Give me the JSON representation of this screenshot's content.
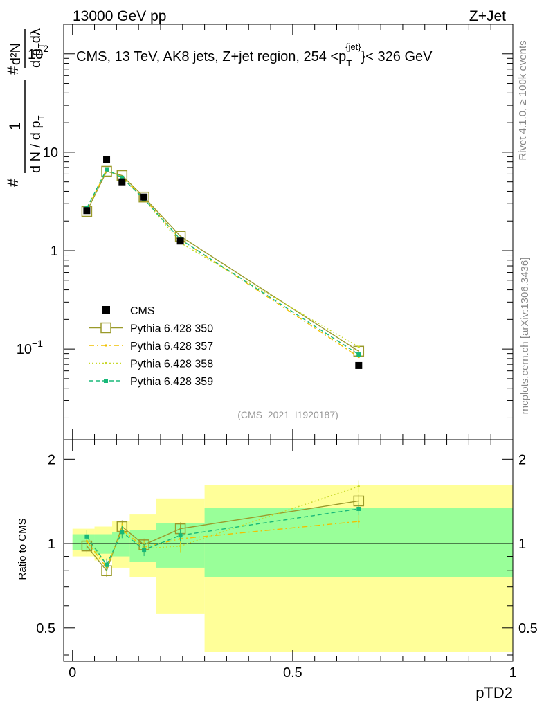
{
  "header": {
    "left": "13000 GeV pp",
    "right": "Z+Jet"
  },
  "side_labels": {
    "rivet": "Rivet 4.1.0, ≥ 100k events",
    "mcplots": "mcplots.cern.ch [arXiv:1306.3436]"
  },
  "chart_data": [
    {
      "panel": "main",
      "type": "line",
      "title_parts": {
        "pre": "CMS, 13 TeV, AK8 jets, Z+jet region, 254 <p",
        "sub": "T",
        "sup": "{jet}",
        "post": "}< 326 GeV"
      },
      "ylabel_parts": {
        "hash": "#",
        "one": "1",
        "dn": "d N / d p",
        "dn_sub": "T",
        "hash2": "#",
        "d2n": "d²N",
        "den": "d p",
        "den_sub": "T",
        "den_post": "dλ"
      },
      "yscale": "log",
      "ylim": [
        0.012,
        200
      ],
      "xlim": [
        -0.02,
        1.0
      ],
      "ytick_labels": [
        {
          "value": 100,
          "base": "10",
          "exp": "2"
        },
        {
          "value": 10,
          "base": "10",
          "exp": ""
        },
        {
          "value": 1,
          "base": "1",
          "exp": ""
        },
        {
          "value": 0.1,
          "base": "10",
          "exp": "−1"
        }
      ],
      "watermark": "(CMS_2021_I1920187)",
      "x": [
        0.0325,
        0.0775,
        0.1125,
        0.1625,
        0.245,
        0.65
      ],
      "series": [
        {
          "name": "CMS",
          "role": "data",
          "values": [
            2.55,
            8.4,
            5.0,
            3.5,
            1.25,
            0.068
          ]
        },
        {
          "name": "Pythia 6.428 350",
          "style": "solid-open-square",
          "values": [
            2.5,
            6.4,
            5.8,
            3.5,
            1.4,
            0.095
          ]
        },
        {
          "name": "Pythia 6.428 357",
          "style": "dashdot",
          "values": [
            2.6,
            6.6,
            5.6,
            3.4,
            1.3,
            0.083
          ]
        },
        {
          "name": "Pythia 6.428 358",
          "style": "dotted",
          "values": [
            2.7,
            6.7,
            5.5,
            3.35,
            1.2,
            0.105
          ]
        },
        {
          "name": "Pythia 6.428 359",
          "style": "dashed-filled-square",
          "values": [
            2.7,
            6.7,
            5.5,
            3.35,
            1.3,
            0.088
          ]
        }
      ],
      "colors": {
        "data": "#000000",
        "p350": "#9a9a2a",
        "p357": "#f0c000",
        "p358": "#c8d82a",
        "p359": "#18b878"
      }
    },
    {
      "panel": "ratio",
      "type": "line",
      "ylabel": "Ratio to CMS",
      "yscale": "log",
      "ylim": [
        0.38,
        2.35
      ],
      "xlim": [
        -0.02,
        1.0
      ],
      "ytick_labels": [
        {
          "value": 2,
          "label": "2"
        },
        {
          "value": 1,
          "label": "1"
        },
        {
          "value": 0.5,
          "label": "0.5"
        }
      ],
      "xtick_labels": [
        {
          "value": 0,
          "label": "0"
        },
        {
          "value": 0.5,
          "label": "0.5"
        },
        {
          "value": 1,
          "label": "1"
        }
      ],
      "xlabel": "pTD2",
      "bins": [
        {
          "lo": 0.0,
          "hi": 0.05,
          "g_lo": 0.95,
          "g_hi": 1.08,
          "y_lo": 0.9,
          "y_hi": 1.13
        },
        {
          "lo": 0.05,
          "hi": 0.09,
          "g_lo": 0.92,
          "g_hi": 1.08,
          "y_lo": 0.87,
          "y_hi": 1.15
        },
        {
          "lo": 0.09,
          "hi": 0.13,
          "g_lo": 0.9,
          "g_hi": 1.1,
          "y_lo": 0.82,
          "y_hi": 1.2
        },
        {
          "lo": 0.13,
          "hi": 0.19,
          "g_lo": 0.86,
          "g_hi": 1.12,
          "y_lo": 0.76,
          "y_hi": 1.27
        },
        {
          "lo": 0.19,
          "hi": 0.3,
          "g_lo": 0.82,
          "g_hi": 1.18,
          "y_lo": 0.56,
          "y_hi": 1.45
        },
        {
          "lo": 0.3,
          "hi": 1.0,
          "g_lo": 0.76,
          "g_hi": 1.34,
          "y_lo": 0.41,
          "y_hi": 1.62
        }
      ],
      "x": [
        0.0325,
        0.0775,
        0.1125,
        0.1625,
        0.245,
        0.65
      ],
      "series": [
        {
          "name": "Pythia 6.428 350",
          "values": [
            0.98,
            0.8,
            1.15,
            0.99,
            1.13,
            1.42
          ]
        },
        {
          "name": "Pythia 6.428 357",
          "values": [
            1.02,
            0.82,
            1.12,
            0.97,
            1.04,
            1.2
          ]
        },
        {
          "name": "Pythia 6.428 358",
          "values": [
            1.06,
            0.83,
            1.11,
            0.96,
            0.98,
            1.6
          ]
        },
        {
          "name": "Pythia 6.428 359",
          "values": [
            1.06,
            0.84,
            1.1,
            0.95,
            1.07,
            1.33
          ]
        }
      ]
    }
  ]
}
